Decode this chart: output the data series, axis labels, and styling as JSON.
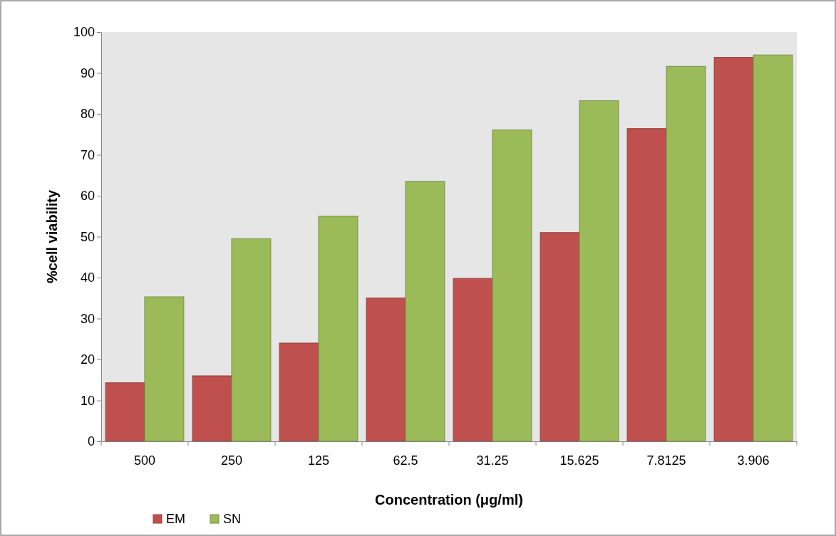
{
  "chart_data": {
    "type": "bar",
    "xlabel": "Concentration (μg/ml)",
    "ylabel": "%cell viability",
    "categories": [
      "500",
      "250",
      "125",
      "62.5",
      "31.25",
      "15.625",
      "7.8125",
      "3.906"
    ],
    "series": [
      {
        "name": "EM",
        "color": "#c0504d",
        "values": [
          14.3,
          16,
          24,
          35,
          39.8,
          51,
          76.4,
          93.8
        ]
      },
      {
        "name": "SN",
        "color": "#9bbb59",
        "values": [
          35.3,
          49.5,
          55,
          63.5,
          76.1,
          83.2,
          91.6,
          94.4
        ]
      }
    ],
    "ylim": [
      0,
      100
    ],
    "yticks": [
      0,
      10,
      20,
      30,
      40,
      50,
      60,
      70,
      80,
      90,
      100
    ],
    "legend": "bottom left"
  }
}
